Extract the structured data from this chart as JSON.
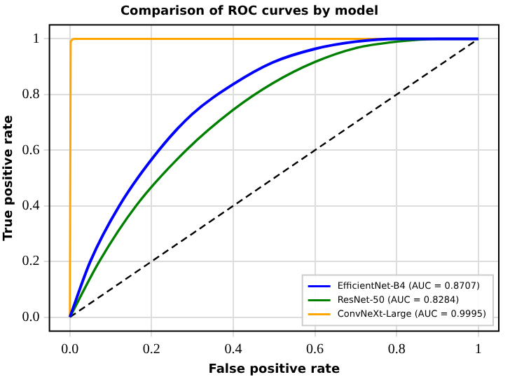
{
  "chart_data": {
    "type": "line",
    "title": "Comparison of ROC curves by model",
    "xlabel": "False positive rate",
    "ylabel": "True positive rate",
    "xlim": [
      -0.05,
      1.05
    ],
    "ylim": [
      -0.05,
      1.05
    ],
    "xticks": [
      {
        "value": 0,
        "label": "0.0"
      },
      0.2,
      0.4,
      0.6,
      0.8,
      1
    ],
    "yticks": [
      {
        "value": 0,
        "label": "0.0"
      },
      0.2,
      0.4,
      0.6,
      0.8,
      1
    ],
    "grid": true,
    "legend": "bottom right",
    "marker": "none",
    "series": [
      {
        "name": "EfficientNet-B4 (AUC = 0.8707)",
        "color": "#0000ff",
        "x": [
          0,
          0.05,
          0.121,
          0.218,
          0.3,
          0.4,
          0.496,
          0.6,
          0.7,
          0.8,
          1
        ],
        "values": [
          0,
          0.2,
          0.4,
          0.6,
          0.73,
          0.837,
          0.915,
          0.964,
          0.99,
          1,
          1
        ]
      },
      {
        "name": "ResNet-50 (AUC = 0.8284)",
        "color": "#008000",
        "x": [
          0,
          0.072,
          0.162,
          0.285,
          0.4,
          0.496,
          0.6,
          0.7,
          0.8,
          0.9,
          1
        ],
        "values": [
          0,
          0.2,
          0.4,
          0.6,
          0.745,
          0.84,
          0.917,
          0.967,
          0.99,
          1,
          1
        ]
      },
      {
        "name": "ConvNeXt-Large (AUC = 0.9995)",
        "color": "#ffa500",
        "x": [
          0,
          0.002,
          0.012,
          1
        ],
        "values": [
          0,
          0.99,
          1,
          1
        ]
      },
      {
        "color": "#000000",
        "line_style": "dashed",
        "x": [
          0,
          1
        ],
        "values": [
          0,
          1
        ]
      }
    ]
  }
}
